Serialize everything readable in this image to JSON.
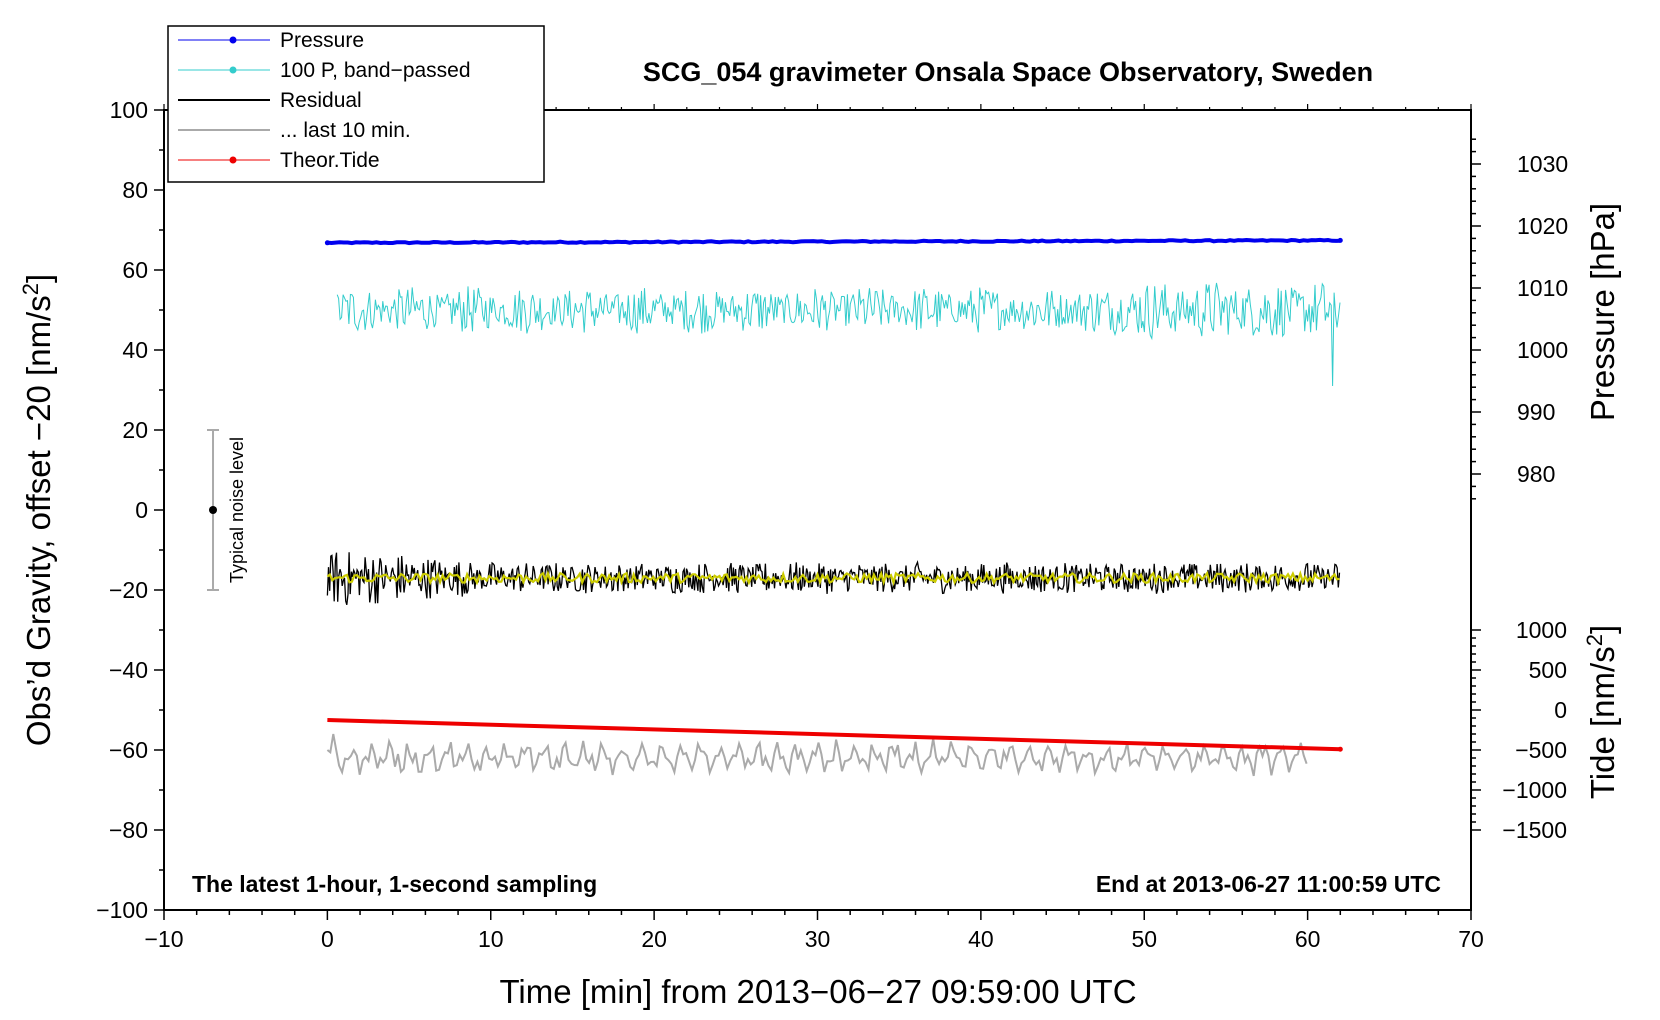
{
  "chart_data": {
    "type": "line",
    "title": "SCG_054 gravimeter Onsala Space Observatory, Sweden",
    "xlabel": "Time [min] from 2013−06−27 09:59:00 UTC",
    "ylabel_left_main": "Obs’d Gravity, offset −20 [nm/s",
    "ylabel_left_sup": "2",
    "ylabel_left_end": "]",
    "ylabel_right_top": "Pressure [hPa]",
    "ylabel_right_bottom_main": "Tide [nm/s",
    "ylabel_right_bottom_sup": "2",
    "ylabel_right_bottom_end": "]",
    "xlim": [
      -10,
      70
    ],
    "ylim": [
      -100,
      100
    ],
    "x_ticks": [
      -10,
      0,
      10,
      20,
      30,
      40,
      50,
      60,
      70
    ],
    "x_tick_labels": [
      "−10",
      "0",
      "10",
      "20",
      "30",
      "40",
      "50",
      "60",
      "70"
    ],
    "y_ticks": [
      100,
      80,
      60,
      40,
      20,
      0,
      -20,
      -40,
      -60,
      -80,
      -100
    ],
    "y_tick_labels": [
      "100",
      "80",
      "60",
      "40",
      "20",
      "0",
      "−20",
      "−40",
      "−60",
      "−80",
      "−100"
    ],
    "pressure_axis": {
      "ticks": [
        1030,
        1020,
        1010,
        1000,
        990,
        980
      ],
      "tick_labels": [
        "1030",
        "1020",
        "1010",
        "1000",
        "990",
        "980"
      ],
      "gravity_at_1000": 40,
      "gravity_per_hpa": 1.55
    },
    "tide_axis": {
      "ticks": [
        1000,
        500,
        0,
        -500,
        -1000,
        -1500
      ],
      "tick_labels": [
        "1000",
        "500",
        "0",
        "−500",
        "−1000",
        "−1500"
      ],
      "gravity_at_0": -50,
      "gravity_per_unit": 0.02
    },
    "annotation_left": "The latest 1-hour, 1-second sampling",
    "annotation_right": "End at 2013-06-27 11:00:59 UTC",
    "noise_bar": {
      "label": "Typical noise level",
      "x": -7,
      "y_center": 0,
      "y_low": -20,
      "y_high": 20
    },
    "series": [
      {
        "name": "Pressure",
        "color": "#0000ee",
        "x_range": [
          0,
          62
        ],
        "y_start": 66.8,
        "y_end": 67.4,
        "noise_amp": 0.3
      },
      {
        "name": "100 P, band−passed",
        "color": "#33cccc",
        "x_range": [
          0,
          62
        ],
        "y_center": 50,
        "noise_amp": 6,
        "min": 31,
        "max": 64
      },
      {
        "name": "Residual",
        "color": "#000000",
        "x_range": [
          0,
          62
        ],
        "y_center": -17,
        "noise_amp": 4,
        "min": -26,
        "max": -4
      },
      {
        "name": "... last 10 min.",
        "color": "#aaaaaa",
        "x_range": [
          0,
          60
        ],
        "y_center": -62,
        "noise_amp": 3.5
      },
      {
        "name": "Theor.Tide",
        "color": "#ee0000",
        "x_range": [
          0,
          62
        ],
        "y_start": -52.5,
        "y_end": -59.8
      }
    ],
    "smoothed_residual": {
      "color": "#cccc00",
      "y_center": -17,
      "noise_amp": 1.2
    }
  },
  "colors": {
    "pressure": "#0000ee",
    "bandpassed": "#33cccc",
    "residual": "#000000",
    "last10": "#aaaaaa",
    "tide": "#ee0000",
    "smoothed": "#cccc00"
  }
}
